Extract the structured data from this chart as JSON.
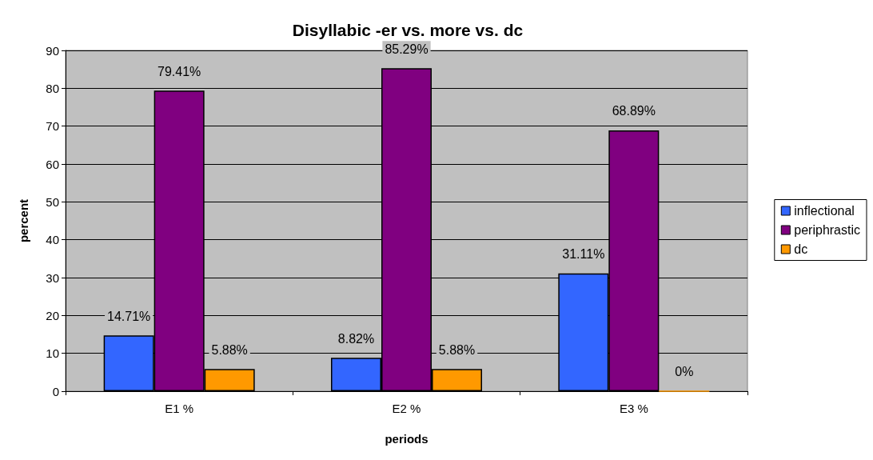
{
  "chart_data": {
    "type": "bar",
    "title": "Disyllabic -er vs. more vs. dc",
    "xlabel": "periods",
    "ylabel": "percent",
    "categories": [
      "E1 %",
      "E2 %",
      "E3 %"
    ],
    "series": [
      {
        "name": "inflectional",
        "color": "#3366ff",
        "values": [
          14.71,
          8.82,
          31.11
        ],
        "value_labels": [
          "14.71%",
          "8.82%",
          "31.11%"
        ]
      },
      {
        "name": "periphrastic",
        "color": "#800080",
        "values": [
          79.41,
          85.29,
          68.89
        ],
        "value_labels": [
          "79.41%",
          "85.29%",
          "68.89%"
        ]
      },
      {
        "name": "dc",
        "color": "#ff9900",
        "values": [
          5.88,
          5.88,
          0
        ],
        "value_labels": [
          "5.88%",
          "5.88%",
          "0%"
        ]
      }
    ],
    "ylim": [
      0,
      90
    ],
    "yticks": [
      0,
      10,
      20,
      30,
      40,
      50,
      60,
      70,
      80,
      90
    ],
    "grid": "y",
    "legend": "right"
  }
}
